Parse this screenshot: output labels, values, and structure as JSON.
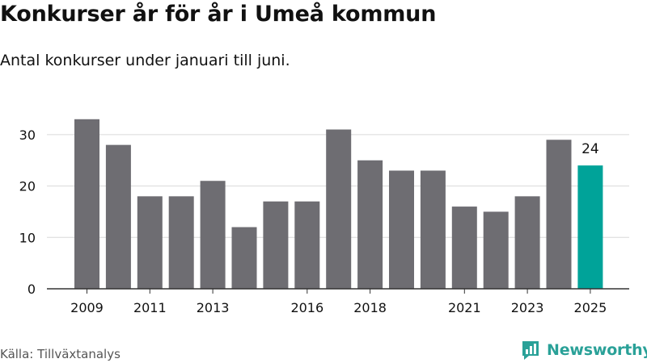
{
  "header": {
    "title": "Konkurser år för år i Umeå kommun",
    "subtitle": "Antal konkurser under januari till juni."
  },
  "footer": {
    "source": "Källa: Tillväxtanalys",
    "brand": "Newsworthy"
  },
  "colors": {
    "bar": "#6e6d72",
    "highlight": "#00a399",
    "grid": "#d9d9d9",
    "axis": "#333333",
    "brand": "#2aa198"
  },
  "icons": {
    "logo": "newsworthy-chart-bubble-icon"
  },
  "chart_data": {
    "type": "bar",
    "categories": [
      "2009",
      "2010",
      "2011",
      "2012",
      "2013",
      "2014",
      "2015",
      "2016",
      "2017",
      "2018",
      "2019",
      "2020",
      "2021",
      "2022",
      "2023",
      "2024",
      "2025"
    ],
    "values": [
      33,
      28,
      18,
      18,
      21,
      12,
      17,
      17,
      31,
      25,
      23,
      23,
      16,
      15,
      18,
      29,
      24
    ],
    "x_tick_labels": [
      "2009",
      "2011",
      "2013",
      "2016",
      "2018",
      "2021",
      "2023",
      "2025"
    ],
    "y_ticks": [
      0,
      10,
      20,
      30
    ],
    "ylim": [
      0,
      35
    ],
    "highlight": {
      "category": "2025",
      "label": "24"
    },
    "grid": "horizontal"
  }
}
